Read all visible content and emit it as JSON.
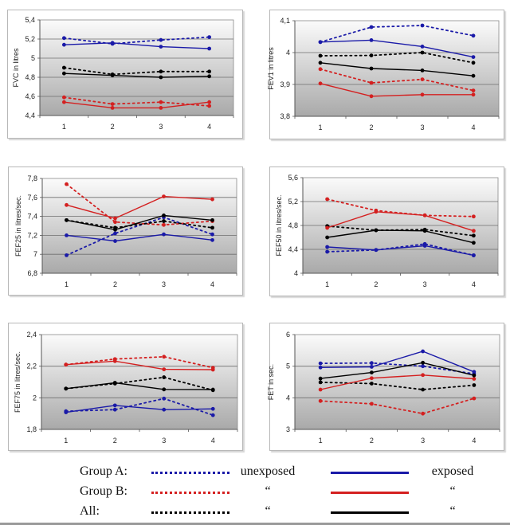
{
  "chart_data": [
    {
      "type": "line",
      "title": "",
      "xlabel": "",
      "ylabel": "FVC in litres",
      "categories": [
        "1",
        "2",
        "3",
        "4"
      ],
      "ylim": [
        4.4,
        5.4
      ],
      "yticks": [
        "4,4",
        "4,6",
        "4,8",
        "5",
        "5,2",
        "5,4"
      ],
      "ytick_values": [
        4.4,
        4.6,
        4.8,
        5.0,
        5.2,
        5.4
      ],
      "grid": true,
      "series": [
        {
          "name": "Group A unexposed",
          "values": [
            5.21,
            5.15,
            5.19,
            5.22
          ]
        },
        {
          "name": "Group A exposed",
          "values": [
            5.14,
            5.16,
            5.12,
            5.1
          ]
        },
        {
          "name": "Group B unexposed",
          "values": [
            4.59,
            4.52,
            4.54,
            4.5
          ]
        },
        {
          "name": "Group B exposed",
          "values": [
            4.54,
            4.48,
            4.48,
            4.54
          ]
        },
        {
          "name": "All unexposed",
          "values": [
            4.9,
            4.83,
            4.86,
            4.86
          ]
        },
        {
          "name": "All exposed",
          "values": [
            4.84,
            4.82,
            4.8,
            4.81
          ]
        }
      ]
    },
    {
      "type": "line",
      "title": "",
      "xlabel": "",
      "ylabel": "FEV1 in litres",
      "categories": [
        "1",
        "2",
        "3",
        "4"
      ],
      "ylim": [
        3.8,
        4.1
      ],
      "yticks": [
        "3,8",
        "3,9",
        "4",
        "4,1"
      ],
      "ytick_values": [
        3.8,
        3.9,
        4.0,
        4.1
      ],
      "grid": true,
      "series": [
        {
          "name": "Group A unexposed",
          "values": [
            4.033,
            4.08,
            4.085,
            4.053
          ]
        },
        {
          "name": "Group A exposed",
          "values": [
            4.033,
            4.039,
            4.019,
            3.986
          ]
        },
        {
          "name": "Group B unexposed",
          "values": [
            3.948,
            3.905,
            3.916,
            3.881
          ]
        },
        {
          "name": "Group B exposed",
          "values": [
            3.903,
            3.863,
            3.868,
            3.868
          ]
        },
        {
          "name": "All unexposed",
          "values": [
            3.99,
            3.991,
            4.0,
            3.968
          ]
        },
        {
          "name": "All exposed",
          "values": [
            3.968,
            3.95,
            3.944,
            3.927
          ]
        }
      ]
    },
    {
      "type": "line",
      "title": "",
      "xlabel": "",
      "ylabel": "FEF25 in litres/sec.",
      "categories": [
        "1",
        "2",
        "3",
        "4"
      ],
      "ylim": [
        6.8,
        7.8
      ],
      "yticks": [
        "6,8",
        "7",
        "7,2",
        "7,4",
        "7,6",
        "7,8"
      ],
      "ytick_values": [
        6.8,
        7.0,
        7.2,
        7.4,
        7.6,
        7.8
      ],
      "grid": true,
      "series": [
        {
          "name": "Group A unexposed",
          "values": [
            6.99,
            7.22,
            7.39,
            7.21
          ]
        },
        {
          "name": "Group A exposed",
          "values": [
            7.2,
            7.14,
            7.21,
            7.15
          ]
        },
        {
          "name": "Group B unexposed",
          "values": [
            7.74,
            7.34,
            7.31,
            7.35
          ]
        },
        {
          "name": "Group B exposed",
          "values": [
            7.52,
            7.38,
            7.61,
            7.58
          ]
        },
        {
          "name": "All unexposed",
          "values": [
            7.36,
            7.28,
            7.35,
            7.28
          ]
        },
        {
          "name": "All exposed",
          "values": [
            7.36,
            7.26,
            7.41,
            7.36
          ]
        }
      ]
    },
    {
      "type": "line",
      "title": "",
      "xlabel": "",
      "ylabel": "FEF50 in litres/sec.",
      "categories": [
        "1",
        "2",
        "3",
        "4"
      ],
      "ylim": [
        4.0,
        5.6
      ],
      "yticks": [
        "4",
        "4,4",
        "4,8",
        "5,2",
        "5,6"
      ],
      "ytick_values": [
        4.0,
        4.4,
        4.8,
        5.2,
        5.6
      ],
      "grid": true,
      "series": [
        {
          "name": "Group A unexposed",
          "values": [
            4.36,
            4.39,
            4.49,
            4.3
          ]
        },
        {
          "name": "Group A exposed",
          "values": [
            4.44,
            4.39,
            4.46,
            4.3
          ]
        },
        {
          "name": "Group B unexposed",
          "values": [
            5.24,
            5.05,
            4.97,
            4.95
          ]
        },
        {
          "name": "Group B exposed",
          "values": [
            4.76,
            5.03,
            4.97,
            4.71
          ]
        },
        {
          "name": "All unexposed",
          "values": [
            4.79,
            4.72,
            4.73,
            4.63
          ]
        },
        {
          "name": "All exposed",
          "values": [
            4.6,
            4.72,
            4.71,
            4.51
          ]
        }
      ]
    },
    {
      "type": "line",
      "title": "",
      "xlabel": "",
      "ylabel": "FEF75 in litres/sec.",
      "categories": [
        "1",
        "2",
        "3",
        "4"
      ],
      "ylim": [
        1.8,
        2.4
      ],
      "yticks": [
        "1,8",
        "2",
        "2,2",
        "2,4"
      ],
      "ytick_values": [
        1.8,
        2.0,
        2.2,
        2.4
      ],
      "grid": true,
      "series": [
        {
          "name": "Group A unexposed",
          "values": [
            1.915,
            1.925,
            1.995,
            1.89
          ]
        },
        {
          "name": "Group A exposed",
          "values": [
            1.908,
            1.952,
            1.925,
            1.93
          ]
        },
        {
          "name": "Group B unexposed",
          "values": [
            2.21,
            2.245,
            2.26,
            2.19
          ]
        },
        {
          "name": "Group B exposed",
          "values": [
            2.21,
            2.232,
            2.18,
            2.178
          ]
        },
        {
          "name": "All unexposed",
          "values": [
            2.058,
            2.09,
            2.13,
            2.048
          ]
        },
        {
          "name": "All exposed",
          "values": [
            2.058,
            2.095,
            2.053,
            2.052
          ]
        }
      ]
    },
    {
      "type": "line",
      "title": "",
      "xlabel": "",
      "ylabel": "FET in sec.",
      "categories": [
        "1",
        "2",
        "3",
        "4"
      ],
      "ylim": [
        3,
        6
      ],
      "yticks": [
        "3",
        "4",
        "5",
        "6"
      ],
      "ytick_values": [
        3,
        4,
        5,
        6
      ],
      "grid": true,
      "series": [
        {
          "name": "Group A unexposed",
          "values": [
            5.09,
            5.1,
            5.0,
            4.76
          ]
        },
        {
          "name": "Group A exposed",
          "values": [
            4.96,
            4.98,
            5.47,
            4.82
          ]
        },
        {
          "name": "Group B unexposed",
          "values": [
            3.9,
            3.81,
            3.5,
            3.98
          ]
        },
        {
          "name": "Group B exposed",
          "values": [
            4.26,
            4.62,
            4.72,
            4.6
          ]
        },
        {
          "name": "All unexposed",
          "values": [
            4.49,
            4.45,
            4.26,
            4.4
          ]
        },
        {
          "name": "All exposed",
          "values": [
            4.61,
            4.8,
            5.11,
            4.71
          ]
        }
      ]
    }
  ],
  "series_styles": {
    "Group A unexposed": {
      "color": "#1a1aa8",
      "dash": true
    },
    "Group A exposed": {
      "color": "#1a1aa8",
      "dash": false
    },
    "Group B unexposed": {
      "color": "#d42020",
      "dash": true
    },
    "Group B exposed": {
      "color": "#d42020",
      "dash": false
    },
    "All unexposed": {
      "color": "#000000",
      "dash": true
    },
    "All exposed": {
      "color": "#000000",
      "dash": false
    }
  },
  "legend": {
    "rows": [
      {
        "group": "Group A:",
        "color": "#1a1aa8",
        "unexposed_label": "unexposed",
        "exposed_label": "exposed"
      },
      {
        "group": "Group B:",
        "color": "#d42020",
        "unexposed_label": "“",
        "exposed_label": "“"
      },
      {
        "group": "All:",
        "color": "#000000",
        "unexposed_label": "“",
        "exposed_label": "“"
      }
    ]
  }
}
